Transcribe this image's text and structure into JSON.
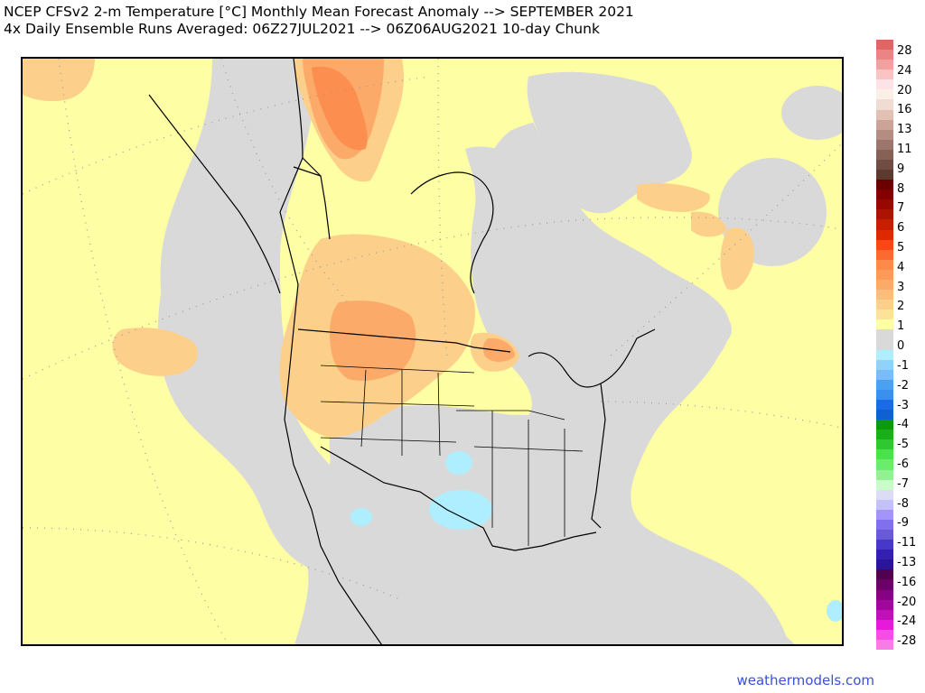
{
  "header": {
    "line1": "NCEP CFSv2 2-m Temperature [°C] Monthly Mean Forecast Anomaly --> SEPTEMBER 2021",
    "line2": "4x Daily Ensemble Runs Averaged: 06Z27JUL2021 --> 06Z06AUG2021 10-day Chunk"
  },
  "legend": {
    "units": "°C",
    "swatches": [
      {
        "color": "#e06666"
      },
      {
        "color": "#eb8585"
      },
      {
        "color": "#f3a0a0"
      },
      {
        "color": "#fbc4c4"
      },
      {
        "color": "#fde3e6"
      },
      {
        "color": "#faf0e6"
      },
      {
        "color": "#f0dcd2"
      },
      {
        "color": "#e2c0b4"
      },
      {
        "color": "#cba398"
      },
      {
        "color": "#b48c82"
      },
      {
        "color": "#9c766c"
      },
      {
        "color": "#876056"
      },
      {
        "color": "#704c42"
      },
      {
        "color": "#5c3a2e"
      },
      {
        "color": "#6a0000"
      },
      {
        "color": "#820000"
      },
      {
        "color": "#960800"
      },
      {
        "color": "#aa1400"
      },
      {
        "color": "#c81e00"
      },
      {
        "color": "#e02800"
      },
      {
        "color": "#fa4614"
      },
      {
        "color": "#fc6a32"
      },
      {
        "color": "#fc8a4a"
      },
      {
        "color": "#fc9a5a"
      },
      {
        "color": "#fcaa6a"
      },
      {
        "color": "#fcbe7a"
      },
      {
        "color": "#fcd08a"
      },
      {
        "color": "#fde29a"
      },
      {
        "color": "#fefea4"
      },
      {
        "color": "#d9d9d9"
      },
      {
        "color": "#d9d9d9"
      },
      {
        "color": "#aeeefe"
      },
      {
        "color": "#90d2fc"
      },
      {
        "color": "#78bcf8"
      },
      {
        "color": "#4ca0f0"
      },
      {
        "color": "#3a90ec"
      },
      {
        "color": "#1c6ae6"
      },
      {
        "color": "#1060d2"
      },
      {
        "color": "#0c9a0c"
      },
      {
        "color": "#1aae1a"
      },
      {
        "color": "#30c830"
      },
      {
        "color": "#4ae24a"
      },
      {
        "color": "#6cec6c"
      },
      {
        "color": "#92f292"
      },
      {
        "color": "#c8fcc8"
      },
      {
        "color": "#dcdcf6"
      },
      {
        "color": "#c4c0fa"
      },
      {
        "color": "#a294f8"
      },
      {
        "color": "#8070ec"
      },
      {
        "color": "#6a5ad8"
      },
      {
        "color": "#4838c8"
      },
      {
        "color": "#3420b0"
      },
      {
        "color": "#2a1498"
      },
      {
        "color": "#520050"
      },
      {
        "color": "#6a0068"
      },
      {
        "color": "#860282"
      },
      {
        "color": "#a0089c"
      },
      {
        "color": "#c010b8"
      },
      {
        "color": "#e61ad8"
      },
      {
        "color": "#f64ee4"
      },
      {
        "color": "#f87ce8"
      }
    ],
    "labels": [
      "28",
      "24",
      "20",
      "16",
      "13",
      "11",
      "9",
      "8",
      "7",
      "6",
      "5",
      "4",
      "3",
      "2",
      "1",
      "0",
      "-1",
      "-2",
      "-3",
      "-4",
      "-5",
      "-6",
      "-7",
      "-8",
      "-9",
      "-11",
      "-13",
      "-16",
      "-20",
      "-24",
      "-28"
    ]
  },
  "map": {
    "projection": "polar stereographic North America",
    "colors": {
      "neutral": "#d9d9d9",
      "plus1": "#fefea4",
      "plus2": "#fcd08a",
      "plus3": "#fcaa6a",
      "plus4": "#fc8a4a",
      "minus1": "#aeeefe",
      "border": "#000000",
      "graticule": "#9a9a9a"
    }
  },
  "footer": {
    "credit": "weathermodels.com"
  }
}
